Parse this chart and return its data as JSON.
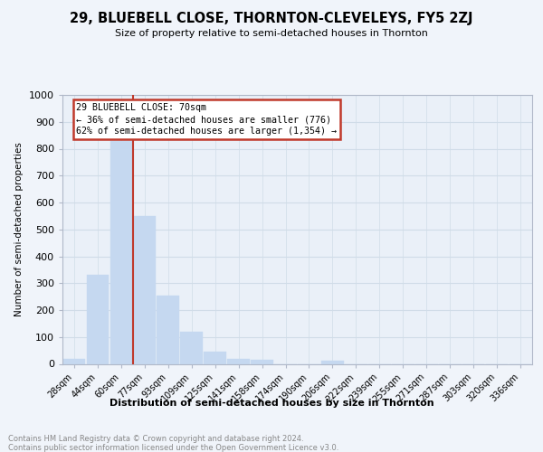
{
  "title": "29, BLUEBELL CLOSE, THORNTON-CLEVELEYS, FY5 2ZJ",
  "subtitle": "Size of property relative to semi-detached houses in Thornton",
  "xlabel": "Distribution of semi-detached houses by size in Thornton",
  "ylabel": "Number of semi-detached properties",
  "footnote": "Contains HM Land Registry data © Crown copyright and database right 2024.\nContains public sector information licensed under the Open Government Licence v3.0.",
  "annotation_title": "29 BLUEBELL CLOSE: 70sqm",
  "annotation_line1": "← 36% of semi-detached houses are smaller (776)",
  "annotation_line2": "62% of semi-detached houses are larger (1,354) →",
  "categories": [
    "28sqm",
    "44sqm",
    "60sqm",
    "77sqm",
    "93sqm",
    "109sqm",
    "125sqm",
    "141sqm",
    "158sqm",
    "174sqm",
    "190sqm",
    "206sqm",
    "222sqm",
    "239sqm",
    "255sqm",
    "271sqm",
    "287sqm",
    "303sqm",
    "320sqm",
    "336sqm"
  ],
  "values": [
    20,
    330,
    830,
    550,
    255,
    120,
    45,
    20,
    15,
    0,
    0,
    12,
    0,
    0,
    0,
    0,
    0,
    0,
    0,
    0
  ],
  "bar_color": "#c5d8f0",
  "highlight_color": "#c0392b",
  "red_line_index": 2.5,
  "ylim": [
    0,
    1000
  ],
  "yticks": [
    0,
    100,
    200,
    300,
    400,
    500,
    600,
    700,
    800,
    900,
    1000
  ],
  "box_edge_color": "#c0392b",
  "grid_color": "#d0dce8",
  "background_color": "#f0f4fa",
  "plot_bg_color": "#eaf0f8"
}
